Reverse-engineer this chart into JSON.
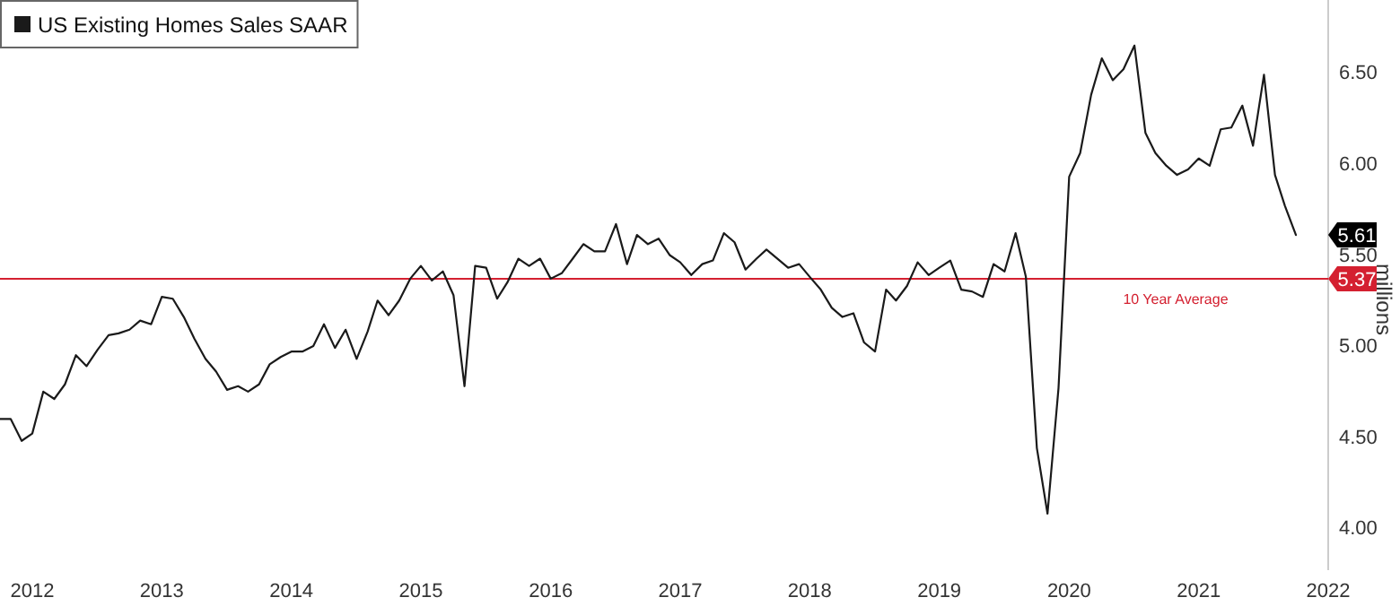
{
  "chart_data": {
    "type": "line",
    "ylabel": "millions",
    "legend": "top left",
    "grid": false,
    "line_style": "solid",
    "marker": "none",
    "xlim": [
      "2012-04",
      "2022-07"
    ],
    "xticks": [
      {
        "value": "2012-07",
        "label": "2012"
      },
      {
        "value": "2013-07",
        "label": "2013"
      },
      {
        "value": "2014-07",
        "label": "2014"
      },
      {
        "value": "2015-07",
        "label": "2015"
      },
      {
        "value": "2016-07",
        "label": "2016"
      },
      {
        "value": "2017-07",
        "label": "2017"
      },
      {
        "value": "2018-07",
        "label": "2018"
      },
      {
        "value": "2019-07",
        "label": "2019"
      },
      {
        "value": "2020-07",
        "label": "2020"
      },
      {
        "value": "2021-07",
        "label": "2021"
      },
      {
        "value": "2022-07",
        "label": "2022"
      }
    ],
    "ylim": [
      3.77,
      6.9
    ],
    "yticks": [
      {
        "value": 4,
        "label": "4.00"
      },
      {
        "value": 4.5,
        "label": "4.50"
      },
      {
        "value": 5,
        "label": "5.00"
      },
      {
        "value": 5.5,
        "label": "5.50"
      },
      {
        "value": 6,
        "label": "6.00"
      },
      {
        "value": 6.5,
        "label": "6.50"
      }
    ],
    "x": [
      "2012-04",
      "2012-05",
      "2012-06",
      "2012-07",
      "2012-08",
      "2012-09",
      "2012-10",
      "2012-11",
      "2012-12",
      "2013-01",
      "2013-02",
      "2013-03",
      "2013-04",
      "2013-05",
      "2013-06",
      "2013-07",
      "2013-08",
      "2013-09",
      "2013-10",
      "2013-11",
      "2013-12",
      "2014-01",
      "2014-02",
      "2014-03",
      "2014-04",
      "2014-05",
      "2014-06",
      "2014-07",
      "2014-08",
      "2014-09",
      "2014-10",
      "2014-11",
      "2014-12",
      "2015-01",
      "2015-02",
      "2015-03",
      "2015-04",
      "2015-05",
      "2015-06",
      "2015-07",
      "2015-08",
      "2015-09",
      "2015-10",
      "2015-11",
      "2015-12",
      "2016-01",
      "2016-02",
      "2016-03",
      "2016-04",
      "2016-05",
      "2016-06",
      "2016-07",
      "2016-08",
      "2016-09",
      "2016-10",
      "2016-11",
      "2016-12",
      "2017-01",
      "2017-02",
      "2017-03",
      "2017-04",
      "2017-05",
      "2017-06",
      "2017-07",
      "2017-08",
      "2017-09",
      "2017-10",
      "2017-11",
      "2017-12",
      "2018-01",
      "2018-02",
      "2018-03",
      "2018-04",
      "2018-05",
      "2018-06",
      "2018-07",
      "2018-08",
      "2018-09",
      "2018-10",
      "2018-11",
      "2018-12",
      "2019-01",
      "2019-02",
      "2019-03",
      "2019-04",
      "2019-05",
      "2019-06",
      "2019-07",
      "2019-08",
      "2019-09",
      "2019-10",
      "2019-11",
      "2019-12",
      "2020-01",
      "2020-02",
      "2020-03",
      "2020-04",
      "2020-05",
      "2020-06",
      "2020-07",
      "2020-08",
      "2020-09",
      "2020-10",
      "2020-11",
      "2020-12",
      "2021-01",
      "2021-02",
      "2021-03",
      "2021-04",
      "2021-05",
      "2021-06",
      "2021-07",
      "2021-08",
      "2021-09",
      "2021-10",
      "2021-11",
      "2021-12",
      "2022-01",
      "2022-02",
      "2022-03",
      "2022-04"
    ],
    "series": [
      {
        "name": "US Existing Homes Sales SAAR",
        "color": "#1a1a1a",
        "values": [
          4.6,
          4.6,
          4.48,
          4.52,
          4.75,
          4.71,
          4.79,
          4.95,
          4.89,
          4.98,
          5.06,
          5.07,
          5.09,
          5.14,
          5.12,
          5.27,
          5.26,
          5.16,
          5.04,
          4.93,
          4.86,
          4.76,
          4.78,
          4.75,
          4.79,
          4.9,
          4.94,
          4.97,
          4.97,
          5.0,
          5.12,
          4.99,
          5.09,
          4.93,
          5.08,
          5.25,
          5.17,
          5.25,
          5.37,
          5.44,
          5.36,
          5.41,
          5.28,
          4.78,
          5.44,
          5.43,
          5.26,
          5.35,
          5.48,
          5.44,
          5.48,
          5.37,
          5.4,
          5.48,
          5.56,
          5.52,
          5.52,
          5.67,
          5.45,
          5.61,
          5.56,
          5.59,
          5.5,
          5.46,
          5.39,
          5.45,
          5.47,
          5.62,
          5.57,
          5.42,
          5.48,
          5.53,
          5.48,
          5.43,
          5.45,
          5.38,
          5.31,
          5.21,
          5.16,
          5.18,
          5.02,
          4.97,
          5.31,
          5.25,
          5.33,
          5.46,
          5.39,
          5.43,
          5.47,
          5.31,
          5.3,
          5.27,
          5.45,
          5.41,
          5.62,
          5.38,
          4.44,
          4.08,
          4.77,
          5.93,
          6.06,
          6.38,
          6.58,
          6.46,
          6.52,
          6.65,
          6.17,
          6.06,
          5.99,
          5.94,
          5.97,
          6.03,
          5.99,
          6.19,
          6.2,
          6.32,
          6.1,
          6.49,
          5.94,
          5.77,
          5.61
        ]
      }
    ],
    "ref_lines": [
      {
        "axis": "y",
        "value": 5.37,
        "label": "10 Year Average",
        "color": "#d42030"
      }
    ],
    "annotations": [
      "5.61",
      "5.37"
    ]
  }
}
